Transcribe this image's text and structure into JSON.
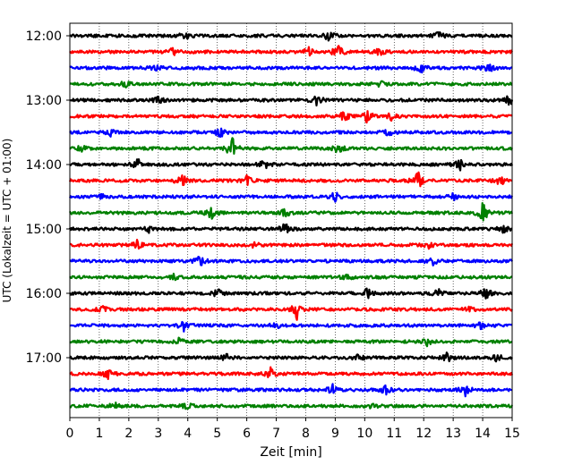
{
  "chart_data": {
    "type": "line",
    "title": "",
    "xlabel": "Zeit  [min]",
    "ylabel": "UTC (Lokalzeit = UTC + 01:00)",
    "xlim": [
      0,
      15
    ],
    "x_ticks": [
      0,
      1,
      2,
      3,
      4,
      5,
      6,
      7,
      8,
      9,
      10,
      11,
      12,
      13,
      14,
      15
    ],
    "x_tick_labels": [
      "0",
      "1",
      "2",
      "3",
      "4",
      "5",
      "6",
      "7",
      "8",
      "9",
      "10",
      "11",
      "12",
      "13",
      "14",
      "15"
    ],
    "y_ticks": [
      "12:00",
      "13:00",
      "14:00",
      "15:00",
      "16:00",
      "17:00"
    ],
    "vertical_grid": true,
    "grid_style": "dotted",
    "trace_minutes": 15,
    "traces": [
      {
        "start": "12:00",
        "color": "#000000",
        "events": [
          {
            "t": 3.9,
            "a": 0.25
          },
          {
            "t": 8.8,
            "a": 0.35
          },
          {
            "t": 12.5,
            "a": 0.3
          }
        ]
      },
      {
        "start": "12:15",
        "color": "#ff0000",
        "events": [
          {
            "t": 3.5,
            "a": 0.25
          },
          {
            "t": 8.1,
            "a": 0.3
          },
          {
            "t": 9.1,
            "a": 0.55
          },
          {
            "t": 10.5,
            "a": 0.2
          }
        ]
      },
      {
        "start": "12:30",
        "color": "#0000ff",
        "events": [
          {
            "t": 2.9,
            "a": 0.2
          },
          {
            "t": 11.9,
            "a": 0.35
          },
          {
            "t": 14.2,
            "a": 0.3
          }
        ]
      },
      {
        "start": "12:45",
        "color": "#008000",
        "events": [
          {
            "t": 1.9,
            "a": 0.2
          },
          {
            "t": 10.5,
            "a": 0.2
          }
        ]
      },
      {
        "start": "13:00",
        "color": "#000000",
        "events": [
          {
            "t": 3.0,
            "a": 0.2
          },
          {
            "t": 8.4,
            "a": 0.35
          },
          {
            "t": 14.9,
            "a": 0.3
          }
        ]
      },
      {
        "start": "13:15",
        "color": "#ff0000",
        "events": [
          {
            "t": 9.3,
            "a": 0.3
          },
          {
            "t": 10.1,
            "a": 0.45
          },
          {
            "t": 10.9,
            "a": 0.2
          }
        ]
      },
      {
        "start": "13:30",
        "color": "#0000ff",
        "events": [
          {
            "t": 1.4,
            "a": 0.2
          },
          {
            "t": 5.1,
            "a": 0.3
          },
          {
            "t": 10.8,
            "a": 0.2
          }
        ]
      },
      {
        "start": "13:45",
        "color": "#008000",
        "events": [
          {
            "t": 0.4,
            "a": 0.25
          },
          {
            "t": 5.5,
            "a": 0.75
          },
          {
            "t": 9.1,
            "a": 0.3
          }
        ]
      },
      {
        "start": "14:00",
        "color": "#000000",
        "events": [
          {
            "t": 2.3,
            "a": 0.35
          },
          {
            "t": 6.6,
            "a": 0.3
          },
          {
            "t": 13.2,
            "a": 0.4
          }
        ]
      },
      {
        "start": "14:15",
        "color": "#ff0000",
        "events": [
          {
            "t": 3.8,
            "a": 0.45
          },
          {
            "t": 6.0,
            "a": 0.3
          },
          {
            "t": 11.8,
            "a": 0.55
          },
          {
            "t": 14.6,
            "a": 0.3
          }
        ]
      },
      {
        "start": "14:30",
        "color": "#0000ff",
        "events": [
          {
            "t": 1.1,
            "a": 0.2
          },
          {
            "t": 9.0,
            "a": 0.35
          },
          {
            "t": 13.0,
            "a": 0.2
          }
        ]
      },
      {
        "start": "14:45",
        "color": "#008000",
        "events": [
          {
            "t": 4.8,
            "a": 0.4
          },
          {
            "t": 7.3,
            "a": 0.25
          },
          {
            "t": 14.0,
            "a": 0.65
          }
        ]
      },
      {
        "start": "15:00",
        "color": "#000000",
        "events": [
          {
            "t": 2.7,
            "a": 0.3
          },
          {
            "t": 7.3,
            "a": 0.35
          },
          {
            "t": 14.7,
            "a": 0.25
          }
        ]
      },
      {
        "start": "15:15",
        "color": "#ff0000",
        "events": [
          {
            "t": 2.3,
            "a": 0.35
          },
          {
            "t": 6.3,
            "a": 0.2
          },
          {
            "t": 12.2,
            "a": 0.2
          }
        ]
      },
      {
        "start": "15:30",
        "color": "#0000ff",
        "events": [
          {
            "t": 4.4,
            "a": 0.35
          },
          {
            "t": 12.3,
            "a": 0.3
          }
        ]
      },
      {
        "start": "15:45",
        "color": "#008000",
        "events": [
          {
            "t": 3.5,
            "a": 0.2
          },
          {
            "t": 9.4,
            "a": 0.2
          }
        ]
      },
      {
        "start": "16:00",
        "color": "#000000",
        "events": [
          {
            "t": 5.0,
            "a": 0.25
          },
          {
            "t": 10.1,
            "a": 0.35
          },
          {
            "t": 12.5,
            "a": 0.25
          },
          {
            "t": 14.1,
            "a": 0.4
          }
        ]
      },
      {
        "start": "16:15",
        "color": "#ff0000",
        "events": [
          {
            "t": 1.1,
            "a": 0.2
          },
          {
            "t": 7.7,
            "a": 0.6
          },
          {
            "t": 13.6,
            "a": 0.2
          }
        ]
      },
      {
        "start": "16:30",
        "color": "#0000ff",
        "events": [
          {
            "t": 3.9,
            "a": 0.4
          },
          {
            "t": 7.0,
            "a": 0.2
          },
          {
            "t": 13.9,
            "a": 0.25
          }
        ]
      },
      {
        "start": "16:45",
        "color": "#008000",
        "events": [
          {
            "t": 3.7,
            "a": 0.2
          },
          {
            "t": 12.1,
            "a": 0.25
          }
        ]
      },
      {
        "start": "17:00",
        "color": "#000000",
        "events": [
          {
            "t": 5.3,
            "a": 0.25
          },
          {
            "t": 9.8,
            "a": 0.2
          },
          {
            "t": 12.8,
            "a": 0.3
          },
          {
            "t": 14.5,
            "a": 0.25
          }
        ]
      },
      {
        "start": "17:15",
        "color": "#ff0000",
        "events": [
          {
            "t": 1.3,
            "a": 0.3
          },
          {
            "t": 6.8,
            "a": 0.35
          }
        ]
      },
      {
        "start": "17:30",
        "color": "#0000ff",
        "events": [
          {
            "t": 8.9,
            "a": 0.35
          },
          {
            "t": 10.7,
            "a": 0.35
          },
          {
            "t": 13.4,
            "a": 0.4
          }
        ]
      },
      {
        "start": "17:45",
        "color": "#008000",
        "events": [
          {
            "t": 1.5,
            "a": 0.25
          },
          {
            "t": 4.0,
            "a": 0.2
          },
          {
            "t": 10.2,
            "a": 0.2
          }
        ]
      }
    ]
  }
}
